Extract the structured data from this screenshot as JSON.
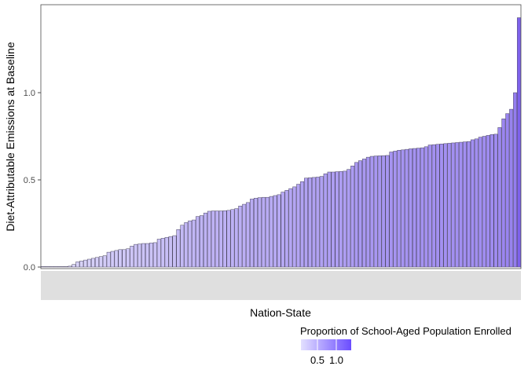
{
  "chart_data": {
    "type": "bar",
    "ylabel": "Diet-Attributable Emissions at Baseline",
    "xlabel": "Nation-State",
    "ylim": [
      -0.02,
      1.45
    ],
    "yticks": [
      0.0,
      0.5,
      1.0
    ],
    "ytick_labels": [
      "0.0",
      "0.5",
      "1.0"
    ],
    "grid": false,
    "legend": {
      "title": "Proportion of School-Aged Population Enrolled",
      "placement": "bottom",
      "ticks": [
        "0.5",
        "1.0"
      ],
      "color_low": "#e3e0ff",
      "color_high": "#6b4dff"
    },
    "bar_fill_low": "#dcd8f8",
    "bar_fill_high": "#7e62ec",
    "bar_stroke": "#4a4560",
    "values": [
      0,
      0,
      0,
      0,
      0,
      0,
      0,
      0.005,
      0.015,
      0.03,
      0.035,
      0.04,
      0.045,
      0.05,
      0.055,
      0.06,
      0.065,
      0.085,
      0.09,
      0.095,
      0.1,
      0.1,
      0.105,
      0.12,
      0.13,
      0.132,
      0.135,
      0.135,
      0.138,
      0.14,
      0.16,
      0.165,
      0.17,
      0.175,
      0.18,
      0.215,
      0.24,
      0.255,
      0.265,
      0.27,
      0.29,
      0.295,
      0.31,
      0.32,
      0.322,
      0.322,
      0.322,
      0.323,
      0.325,
      0.33,
      0.335,
      0.35,
      0.36,
      0.37,
      0.39,
      0.395,
      0.398,
      0.4,
      0.4,
      0.405,
      0.41,
      0.415,
      0.43,
      0.44,
      0.45,
      0.46,
      0.475,
      0.49,
      0.51,
      0.512,
      0.514,
      0.516,
      0.52,
      0.535,
      0.545,
      0.545,
      0.547,
      0.548,
      0.55,
      0.56,
      0.58,
      0.6,
      0.61,
      0.62,
      0.63,
      0.635,
      0.637,
      0.638,
      0.639,
      0.64,
      0.66,
      0.665,
      0.67,
      0.672,
      0.675,
      0.678,
      0.68,
      0.682,
      0.684,
      0.69,
      0.7,
      0.702,
      0.704,
      0.706,
      0.708,
      0.71,
      0.712,
      0.714,
      0.716,
      0.718,
      0.72,
      0.73,
      0.735,
      0.745,
      0.75,
      0.755,
      0.76,
      0.762,
      0.8,
      0.85,
      0.88,
      0.905,
      1.0,
      1.43
    ],
    "enrollment": [
      0.1,
      0.1,
      0.1,
      0.1,
      0.1,
      0.1,
      0.1,
      0.12,
      0.14,
      0.16,
      0.17,
      0.18,
      0.19,
      0.2,
      0.21,
      0.22,
      0.23,
      0.25,
      0.26,
      0.27,
      0.28,
      0.28,
      0.29,
      0.31,
      0.32,
      0.32,
      0.33,
      0.33,
      0.33,
      0.34,
      0.36,
      0.37,
      0.37,
      0.38,
      0.38,
      0.42,
      0.44,
      0.46,
      0.47,
      0.47,
      0.49,
      0.5,
      0.51,
      0.52,
      0.52,
      0.52,
      0.52,
      0.52,
      0.53,
      0.53,
      0.54,
      0.55,
      0.56,
      0.57,
      0.59,
      0.59,
      0.6,
      0.6,
      0.6,
      0.6,
      0.61,
      0.61,
      0.63,
      0.64,
      0.65,
      0.66,
      0.67,
      0.69,
      0.7,
      0.71,
      0.71,
      0.71,
      0.71,
      0.73,
      0.74,
      0.74,
      0.74,
      0.74,
      0.74,
      0.75,
      0.77,
      0.79,
      0.8,
      0.81,
      0.82,
      0.82,
      0.82,
      0.83,
      0.83,
      0.83,
      0.85,
      0.85,
      0.86,
      0.86,
      0.86,
      0.86,
      0.87,
      0.87,
      0.87,
      0.88,
      0.89,
      0.89,
      0.89,
      0.89,
      0.89,
      0.89,
      0.9,
      0.9,
      0.9,
      0.9,
      0.9,
      0.91,
      0.92,
      0.93,
      0.93,
      0.94,
      0.94,
      0.94,
      0.97,
      1.0,
      1.02,
      1.04,
      1.1,
      1.4
    ]
  }
}
